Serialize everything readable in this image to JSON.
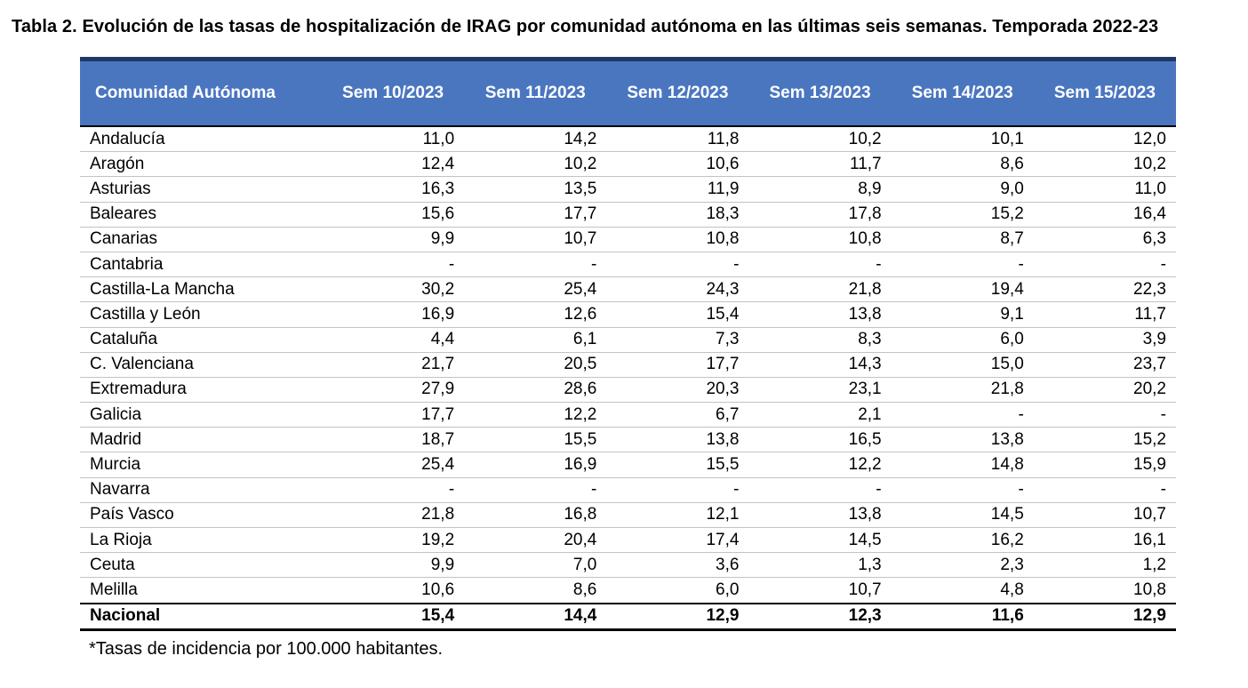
{
  "title": "Tabla 2. Evolución de las tasas de hospitalización de IRAG por comunidad autónoma en las últimas seis semanas. Temporada 2022-23",
  "footnote": "*Tasas de incidencia por 100.000 habitantes.",
  "colors": {
    "header_bg": "#4A76C0",
    "header_text": "#FFFFFF",
    "header_top_border": "#1F3864",
    "strong_border": "#000000",
    "row_divider": "#C3C3C3"
  },
  "table": {
    "columns": [
      "Comunidad Autónoma",
      "Sem 10/2023",
      "Sem 11/2023",
      "Sem 12/2023",
      "Sem 13/2023",
      "Sem 14/2023",
      "Sem 15/2023"
    ],
    "rows": [
      {
        "name": "Andalucía",
        "values": [
          "11,0",
          "14,2",
          "11,8",
          "10,2",
          "10,1",
          "12,0"
        ],
        "bold": false
      },
      {
        "name": "Aragón",
        "values": [
          "12,4",
          "10,2",
          "10,6",
          "11,7",
          "8,6",
          "10,2"
        ],
        "bold": false
      },
      {
        "name": "Asturias",
        "values": [
          "16,3",
          "13,5",
          "11,9",
          "8,9",
          "9,0",
          "11,0"
        ],
        "bold": false
      },
      {
        "name": "Baleares",
        "values": [
          "15,6",
          "17,7",
          "18,3",
          "17,8",
          "15,2",
          "16,4"
        ],
        "bold": false
      },
      {
        "name": "Canarias",
        "values": [
          "9,9",
          "10,7",
          "10,8",
          "10,8",
          "8,7",
          "6,3"
        ],
        "bold": false
      },
      {
        "name": "Cantabria",
        "values": [
          "-",
          "-",
          "-",
          "-",
          "-",
          "-"
        ],
        "bold": false
      },
      {
        "name": "Castilla-La Mancha",
        "values": [
          "30,2",
          "25,4",
          "24,3",
          "21,8",
          "19,4",
          "22,3"
        ],
        "bold": false
      },
      {
        "name": "Castilla y León",
        "values": [
          "16,9",
          "12,6",
          "15,4",
          "13,8",
          "9,1",
          "11,7"
        ],
        "bold": false
      },
      {
        "name": "Cataluña",
        "values": [
          "4,4",
          "6,1",
          "7,3",
          "8,3",
          "6,0",
          "3,9"
        ],
        "bold": false
      },
      {
        "name": "C. Valenciana",
        "values": [
          "21,7",
          "20,5",
          "17,7",
          "14,3",
          "15,0",
          "23,7"
        ],
        "bold": false
      },
      {
        "name": "Extremadura",
        "values": [
          "27,9",
          "28,6",
          "20,3",
          "23,1",
          "21,8",
          "20,2"
        ],
        "bold": false
      },
      {
        "name": "Galicia",
        "values": [
          "17,7",
          "12,2",
          "6,7",
          "2,1",
          "-",
          "-"
        ],
        "bold": false
      },
      {
        "name": "Madrid",
        "values": [
          "18,7",
          "15,5",
          "13,8",
          "16,5",
          "13,8",
          "15,2"
        ],
        "bold": false
      },
      {
        "name": "Murcia",
        "values": [
          "25,4",
          "16,9",
          "15,5",
          "12,2",
          "14,8",
          "15,9"
        ],
        "bold": false
      },
      {
        "name": "Navarra",
        "values": [
          "-",
          "-",
          "-",
          "-",
          "-",
          "-"
        ],
        "bold": false
      },
      {
        "name": "País Vasco",
        "values": [
          "21,8",
          "16,8",
          "12,1",
          "13,8",
          "14,5",
          "10,7"
        ],
        "bold": false
      },
      {
        "name": "La Rioja",
        "values": [
          "19,2",
          "20,4",
          "17,4",
          "14,5",
          "16,2",
          "16,1"
        ],
        "bold": false
      },
      {
        "name": "Ceuta",
        "values": [
          "9,9",
          "7,0",
          "3,6",
          "1,3",
          "2,3",
          "1,2"
        ],
        "bold": false
      },
      {
        "name": "Melilla",
        "values": [
          "10,6",
          "8,6",
          "6,0",
          "10,7",
          "4,8",
          "10,8"
        ],
        "bold": false
      },
      {
        "name": "Nacional",
        "values": [
          "15,4",
          "14,4",
          "12,9",
          "12,3",
          "11,6",
          "12,9"
        ],
        "bold": true
      }
    ]
  }
}
